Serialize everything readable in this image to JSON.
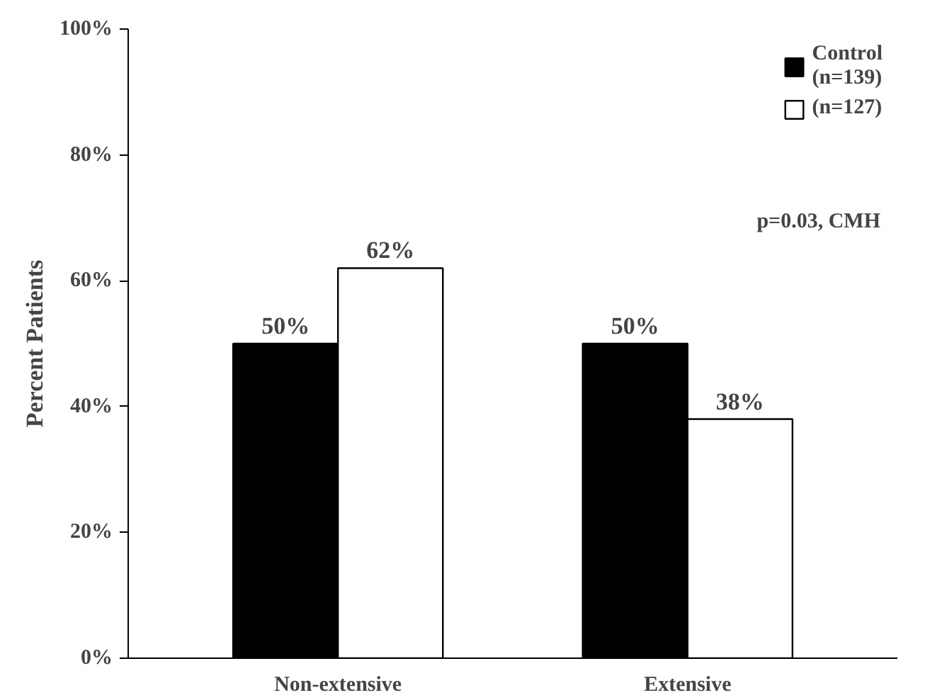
{
  "chart_data": {
    "type": "bar",
    "ylabel": "Percent Patients",
    "categories": [
      "Non-extensive",
      "Extensive"
    ],
    "series": [
      {
        "name": "Control\n(n=139)",
        "color": "#000000",
        "values": [
          50,
          50
        ],
        "value_labels": [
          "50%",
          "50%"
        ]
      },
      {
        "name": "(n=127)",
        "color": "#ffffff",
        "values": [
          62,
          38
        ],
        "value_labels": [
          "62%",
          "38%"
        ]
      }
    ],
    "ylim": [
      0,
      100
    ],
    "yticks": [
      {
        "value": 0,
        "label": "0%"
      },
      {
        "value": 20,
        "label": "20%"
      },
      {
        "value": 40,
        "label": "40%"
      },
      {
        "value": 60,
        "label": "60%"
      },
      {
        "value": 80,
        "label": "80%"
      },
      {
        "value": 100,
        "label": "100%"
      }
    ],
    "grid": false,
    "legend": "top right",
    "annotations": [
      "p=0.03, CMH"
    ]
  }
}
